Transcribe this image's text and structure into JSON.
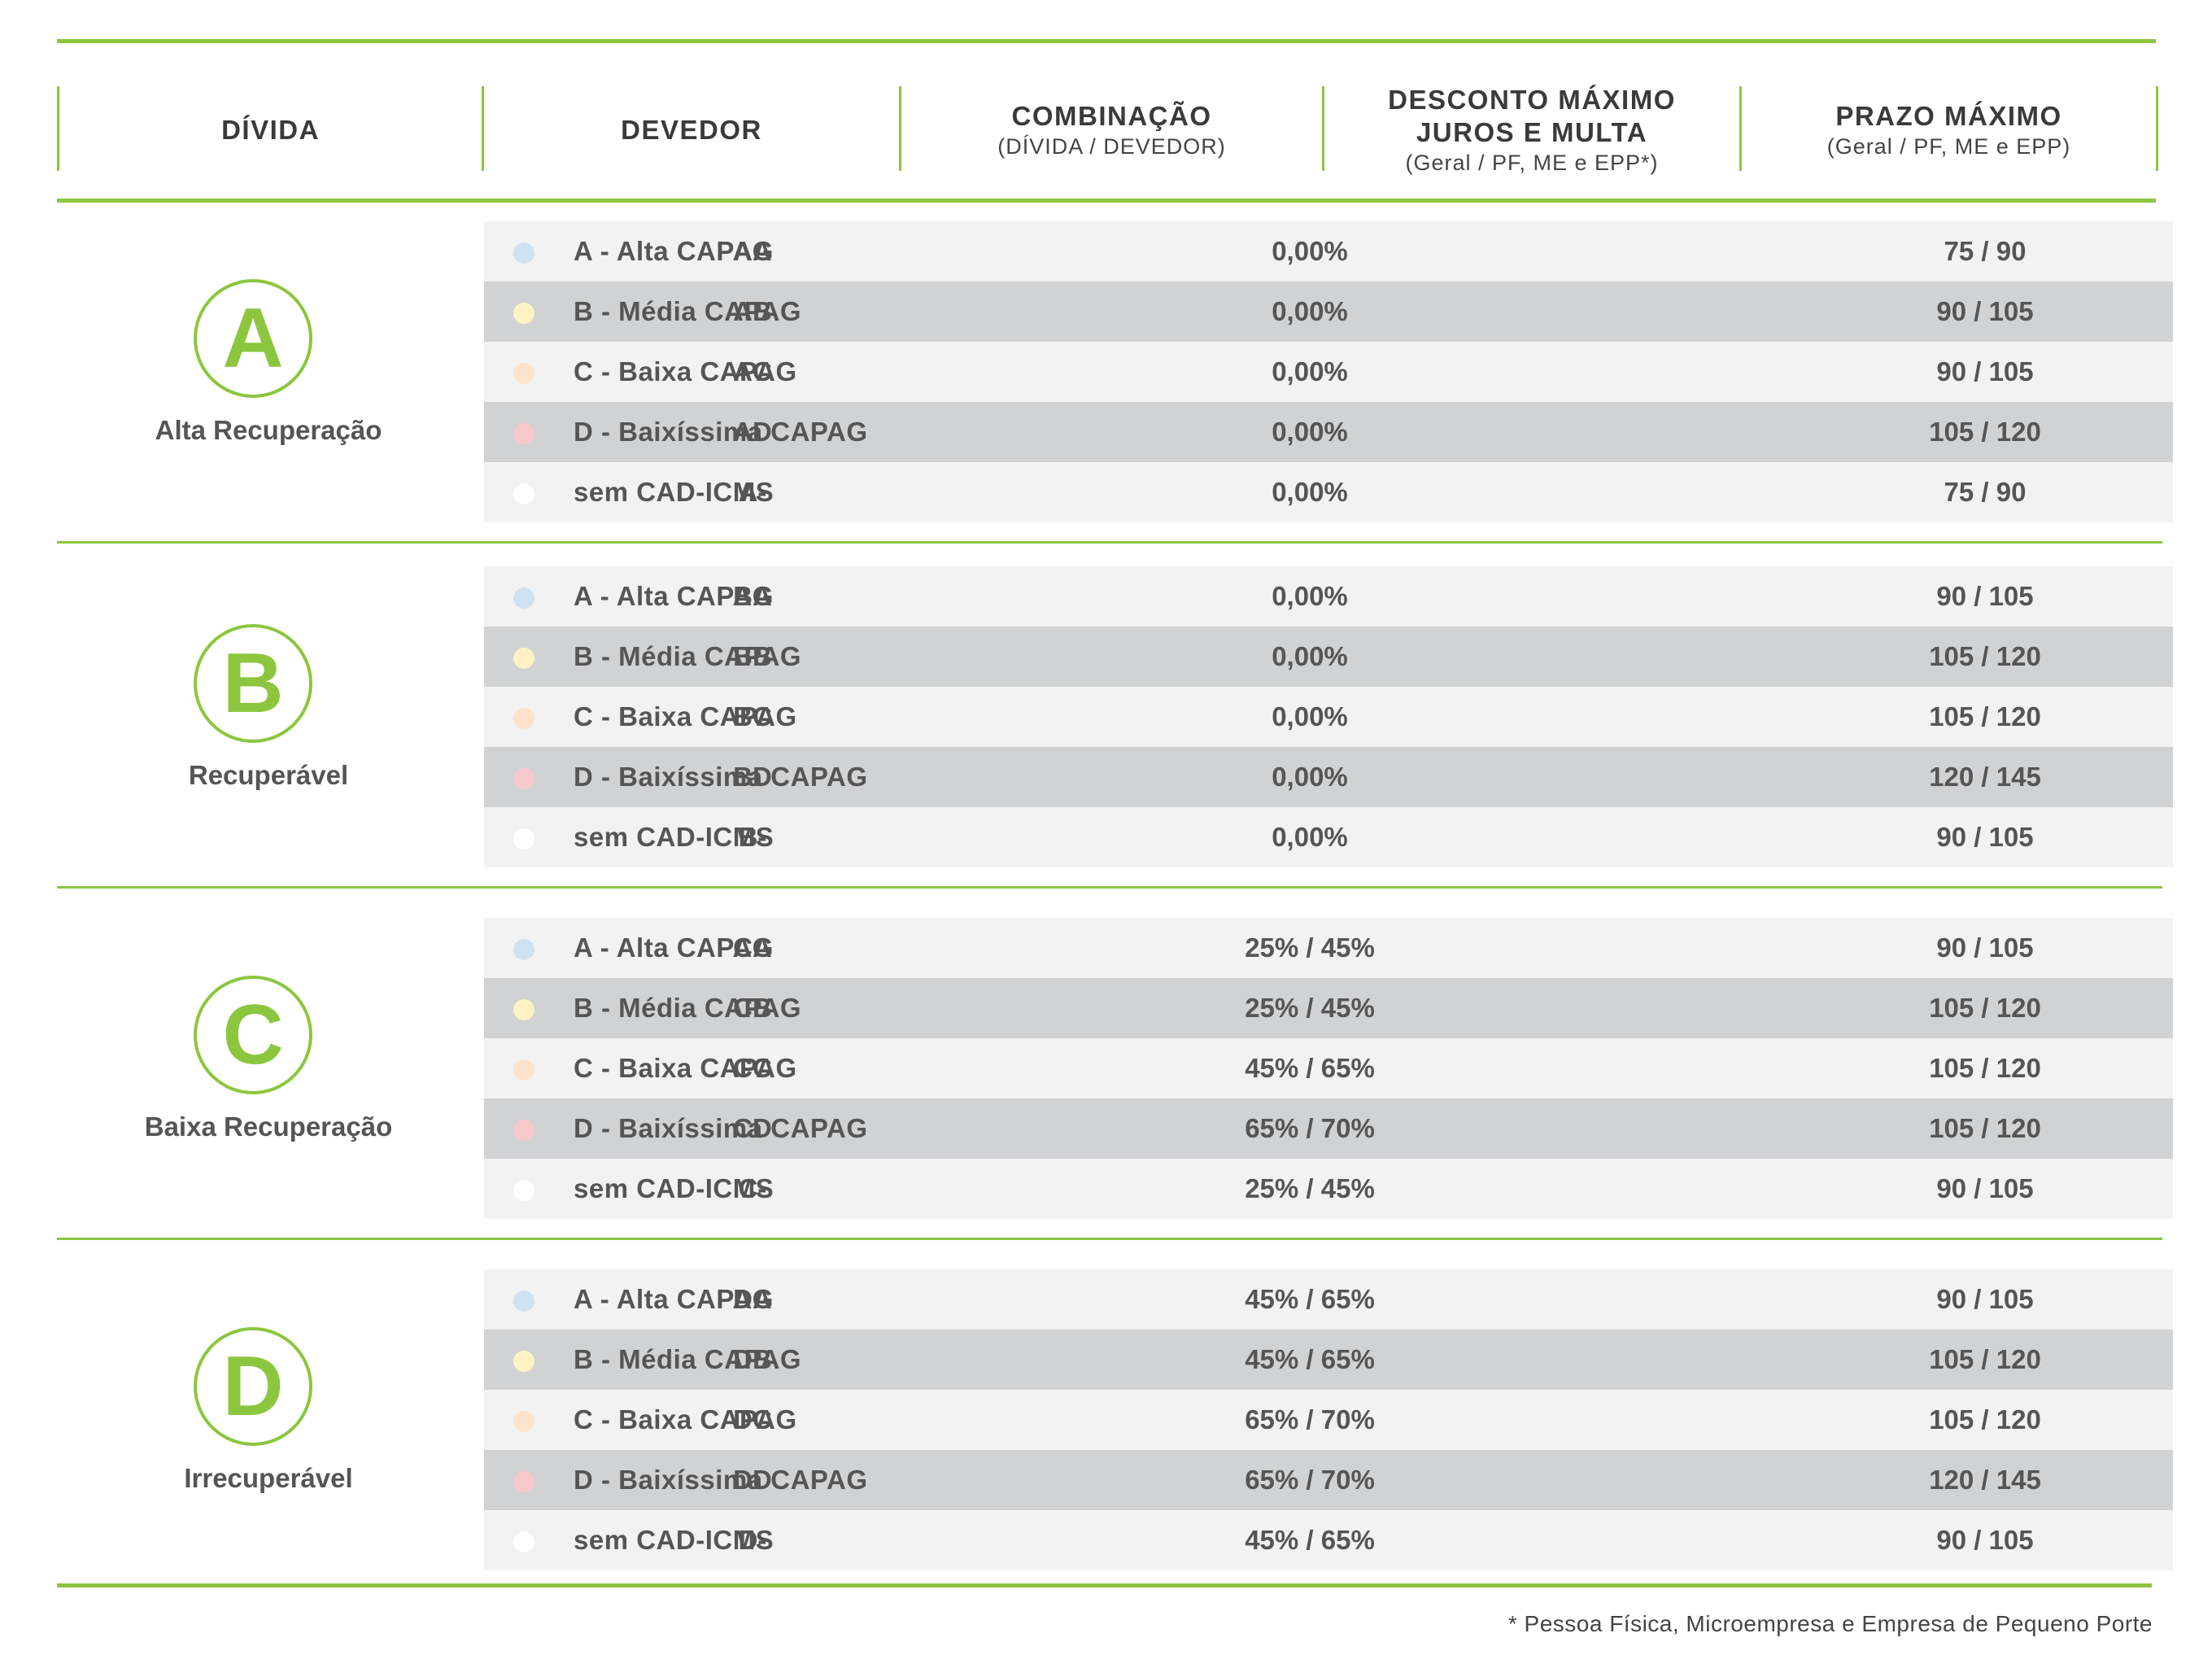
{
  "header": {
    "divida": "DÍVIDA",
    "devedor": "DEVEDOR",
    "combinacao": "COMBINAÇÃO",
    "combinacao_sub": "(DÍVIDA / DEVEDOR)",
    "desconto_line1": "DESCONTO MÁXIMO",
    "desconto_line2": "JUROS E MULTA",
    "desconto_sub": "(Geral / PF, ME e EPP*)",
    "prazo": "PRAZO MÁXIMO",
    "prazo_sub": "(Geral / PF, ME e EPP)"
  },
  "colors": {
    "accent": "#8cc63f",
    "row_light": "#f2f2f2",
    "row_dark": "#d1d2d4",
    "dot_a": "#cfe2f3",
    "dot_b": "#fdf3c2",
    "dot_c": "#fde3cc",
    "dot_d": "#f6c9cc",
    "dot_none": "#ffffff"
  },
  "groups": [
    {
      "letter": "A",
      "label": "Alta Recuperação",
      "rows": [
        {
          "devedor": "A - Alta CAPAG",
          "combinacao": "AA",
          "desconto": "0,00%",
          "prazo": "75 / 90"
        },
        {
          "devedor": "B - Média CAPAG",
          "combinacao": "AB",
          "desconto": "0,00%",
          "prazo": "90 / 105"
        },
        {
          "devedor": "C - Baixa CAPAG",
          "combinacao": "AC",
          "desconto": "0,00%",
          "prazo": "90 / 105"
        },
        {
          "devedor": "D - Baixíssima CAPAG",
          "combinacao": "AD",
          "desconto": "0,00%",
          "prazo": "105 / 120"
        },
        {
          "devedor": "sem CAD-ICMS",
          "combinacao": "A-",
          "desconto": "0,00%",
          "prazo": "75 / 90"
        }
      ]
    },
    {
      "letter": "B",
      "label": "Recuperável",
      "rows": [
        {
          "devedor": "A - Alta CAPAG",
          "combinacao": "BA",
          "desconto": "0,00%",
          "prazo": "90 / 105"
        },
        {
          "devedor": "B - Média CAPAG",
          "combinacao": "BB",
          "desconto": "0,00%",
          "prazo": "105 / 120"
        },
        {
          "devedor": "C - Baixa CAPAG",
          "combinacao": "BC",
          "desconto": "0,00%",
          "prazo": "105 / 120"
        },
        {
          "devedor": "D - Baixíssima CAPAG",
          "combinacao": "BD",
          "desconto": "0,00%",
          "prazo": "120 / 145"
        },
        {
          "devedor": "sem CAD-ICMS",
          "combinacao": "B-",
          "desconto": "0,00%",
          "prazo": "90 / 105"
        }
      ]
    },
    {
      "letter": "C",
      "label": "Baixa Recuperação",
      "rows": [
        {
          "devedor": "A - Alta CAPAG",
          "combinacao": "CA",
          "desconto": "25% / 45%",
          "prazo": "90 / 105"
        },
        {
          "devedor": "B - Média CAPAG",
          "combinacao": "CB",
          "desconto": "25% / 45%",
          "prazo": "105 / 120"
        },
        {
          "devedor": "C - Baixa CAPAG",
          "combinacao": "CC",
          "desconto": "45% / 65%",
          "prazo": "105 / 120"
        },
        {
          "devedor": "D - Baixíssima CAPAG",
          "combinacao": "CD",
          "desconto": "65% / 70%",
          "prazo": "105 / 120"
        },
        {
          "devedor": "sem CAD-ICMS",
          "combinacao": "C-",
          "desconto": "25% / 45%",
          "prazo": "90 / 105"
        }
      ]
    },
    {
      "letter": "D",
      "label": "Irrecuperável",
      "rows": [
        {
          "devedor": "A - Alta CAPAG",
          "combinacao": "DA",
          "desconto": "45% / 65%",
          "prazo": "90 / 105"
        },
        {
          "devedor": "B - Média CAPAG",
          "combinacao": "DB",
          "desconto": "45% / 65%",
          "prazo": "105 / 120"
        },
        {
          "devedor": "C - Baixa CAPAG",
          "combinacao": "DC",
          "desconto": "65% / 70%",
          "prazo": "105 / 120"
        },
        {
          "devedor": "D - Baixíssima CAPAG",
          "combinacao": "DD",
          "desconto": "65% / 70%",
          "prazo": "120 / 145"
        },
        {
          "devedor": "sem CAD-ICMS",
          "combinacao": "D-",
          "desconto": "45% / 65%",
          "prazo": "90 / 105"
        }
      ]
    }
  ],
  "footnote": "* Pessoa Física, Microempresa e Empresa de Pequeno Porte"
}
